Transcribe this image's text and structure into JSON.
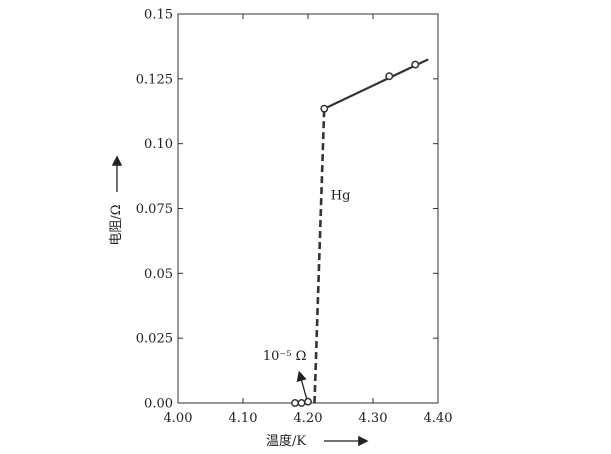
{
  "chart_data": {
    "type": "line",
    "xlabel": "温度/K",
    "ylabel": "电阻/Ω",
    "xlim": [
      4.0,
      4.4
    ],
    "ylim": [
      0.0,
      0.15
    ],
    "x_ticks": [
      "4.00",
      "4.10",
      "4.20",
      "4.30",
      "4.40"
    ],
    "y_ticks": [
      "0.00",
      "0.025",
      "0.05",
      "0.075",
      "0.10",
      "0.125",
      "0.15"
    ],
    "x_tick_values": [
      4.0,
      4.1,
      4.2,
      4.3,
      4.4
    ],
    "y_tick_values": [
      0.0,
      0.025,
      0.05,
      0.075,
      0.1,
      0.125,
      0.15
    ],
    "grid": false,
    "series": [
      {
        "name": "Hg",
        "normal_state_line": [
          [
            4.225,
            0.1135
          ],
          [
            4.385,
            0.1325
          ]
        ],
        "transition_line": [
          [
            4.21,
            0.0
          ],
          [
            4.225,
            0.1135
          ]
        ],
        "markers": [
          [
            4.18,
            0.0
          ],
          [
            4.19,
            0.0
          ],
          [
            4.2,
            0.0005
          ],
          [
            4.225,
            0.1135
          ],
          [
            4.325,
            0.126
          ],
          [
            4.365,
            0.1305
          ]
        ]
      }
    ],
    "annotations": {
      "series_label": "Hg",
      "series_label_at": [
        4.235,
        0.0785
      ],
      "residual_label": "10⁻⁵ Ω",
      "residual_label_at": [
        4.164,
        0.0165
      ],
      "arrow_from": [
        4.198,
        0.0015
      ],
      "arrow_to": [
        4.187,
        0.0115
      ]
    }
  }
}
